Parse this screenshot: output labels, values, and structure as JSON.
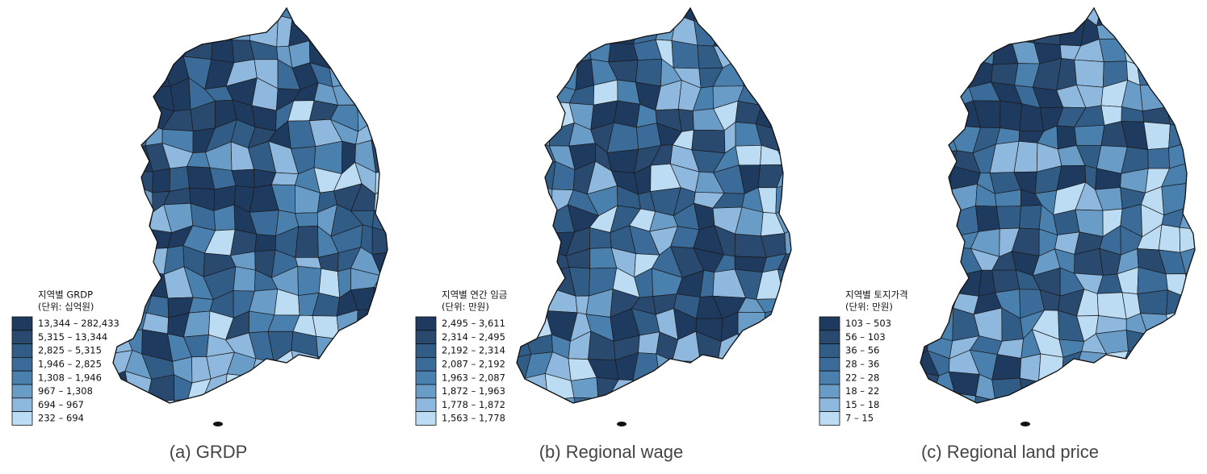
{
  "panels": [
    {
      "caption": "(a) GRDP",
      "legend_title": "지역별 GRDP",
      "legend_unit": "(단위: 십억원)",
      "legend": [
        {
          "label": "13,344 – 282,433",
          "color": "#1f3a5f"
        },
        {
          "label": "5,315 – 13,344",
          "color": "#29496f"
        },
        {
          "label": "2,825 – 5,315",
          "color": "#315c86"
        },
        {
          "label": "1,946 – 2,825",
          "color": "#3b6c99"
        },
        {
          "label": "1,308 – 1,946",
          "color": "#4a80ae"
        },
        {
          "label": "967 – 1,308",
          "color": "#6a9cc8"
        },
        {
          "label": "694 – 967",
          "color": "#8fb8de"
        },
        {
          "label": "232 – 694",
          "color": "#bcdcf3"
        }
      ]
    },
    {
      "caption": "(b) Regional wage",
      "legend_title": "지역별 연간 임금",
      "legend_unit": "(단위: 만원)",
      "legend": [
        {
          "label": "2,495 – 3,611",
          "color": "#1f3a5f"
        },
        {
          "label": "2,314 – 2,495",
          "color": "#29496f"
        },
        {
          "label": "2,192 – 2,314",
          "color": "#315c86"
        },
        {
          "label": "2,087 – 2,192",
          "color": "#3b6c99"
        },
        {
          "label": "1,963 – 2,087",
          "color": "#4a80ae"
        },
        {
          "label": "1,872 – 1,963",
          "color": "#6a9cc8"
        },
        {
          "label": "1,778 – 1,872",
          "color": "#8fb8de"
        },
        {
          "label": "1,563 – 1,778",
          "color": "#bcdcf3"
        }
      ]
    },
    {
      "caption": "(c) Regional land price",
      "legend_title": "지역별 토지가격",
      "legend_unit": "(단위: 만원)",
      "legend": [
        {
          "label": "103 – 503",
          "color": "#1f3a5f"
        },
        {
          "label": "56 – 103",
          "color": "#29496f"
        },
        {
          "label": "36 – 56",
          "color": "#315c86"
        },
        {
          "label": "28 – 36",
          "color": "#3b6c99"
        },
        {
          "label": "22 – 28",
          "color": "#4a80ae"
        },
        {
          "label": "18 – 22",
          "color": "#6a9cc8"
        },
        {
          "label": "15 – 18",
          "color": "#8fb8de"
        },
        {
          "label": "7 – 15",
          "color": "#bcdcf3"
        }
      ]
    }
  ]
}
